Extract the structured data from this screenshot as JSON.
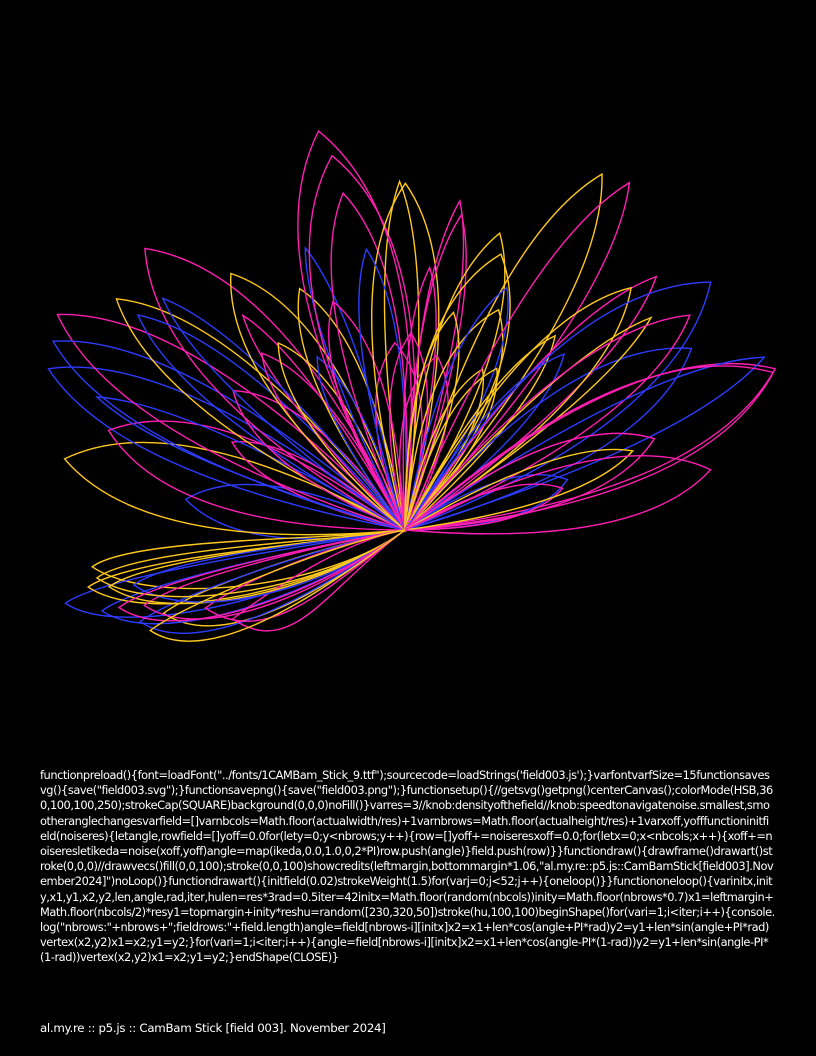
{
  "background": "#000000",
  "palette": [
    "#ff1eb4",
    "#ffc81e",
    "#2e3cff"
  ],
  "source_code": "functionpreload(){font=loadFont(\"../fonts/1CAMBam_Stick_9.ttf\");sourcecode=loadStrings('field003.js');}varfontvarfSize=15functionsavesvg(){save(\"field003.svg\");}functionsavepng(){save(\"field003.png\");}functionsetup(){//getsvg()getpng()centerCanvas();colorMode(HSB,360,100,100,250);strokeCap(SQUARE)background(0,0,0)noFill()}varres=3//knob:densityofthefield//knob:speedtonavigatenoise.smallest,smootheranglechangesvarfield=[]varnbcols=Math.floor(actualwidth/res)+1varnbrows=Math.floor(actualheight/res)+1varxoff,yofffunctioninitfield(noiseres){letangle,rowfield=[]yoff=0.0for(lety=0;y<nbrows;y++){row=[]yoff+=noiseresxoff=0.0;for(letx=0;x<nbcols;x++){xoff+=noiseresletikeda=noise(xoff,yoff)angle=map(ikeda,0.0,1.0,0,2*PI)row.push(angle)}field.push(row)}}functiondraw(){drawframe()drawart()stroke(0,0,0)//drawvecs()fill(0,0,100);stroke(0,0,100)showcredits(leftmargin,bottommargin*1.06,\"al.my.re::p5.js::CamBamStick[field003].November2024]\")noLoop()}functiondrawart(){initfield(0.02)strokeWeight(1.5)for(varj=0;j<52;j++){oneloop()}}functiononeloop(){varinitx,inity,x1,y1,x2,y2,len,angle,rad,iter,hulen=res*3rad=0.5iter=42initx=Math.floor(random(nbcols))inity=Math.floor(nbrows*0.7)x1=leftmargin+Math.floor(nbcols/2)*resy1=topmargin+inity*reshu=random([230,320,50])stroke(hu,100,100)beginShape()for(vari=1;i<iter;i++){console.log(\"nbrows:\"+nbrows+\";fieldrows:\"+field.length)angle=field[nbrows-i][initx]x2=x1+len*cos(angle+PI*rad)y2=y1+len*sin(angle+PI*rad)vertex(x2,y2)x1=x2;y1=y2;}for(vari=1;i<iter;i++){angle=field[nbrows-i][initx]x2=x1+len*cos(angle-PI*(1-rad))y2=y1+len*sin(angle-PI*(1-rad))vertex(x2,y2)x1=x2;y1=y2;}endShape(CLOSE)}",
  "credits": "al.my.re :: p5.js :: CamBam Stick [field 003]. November 2024]"
}
